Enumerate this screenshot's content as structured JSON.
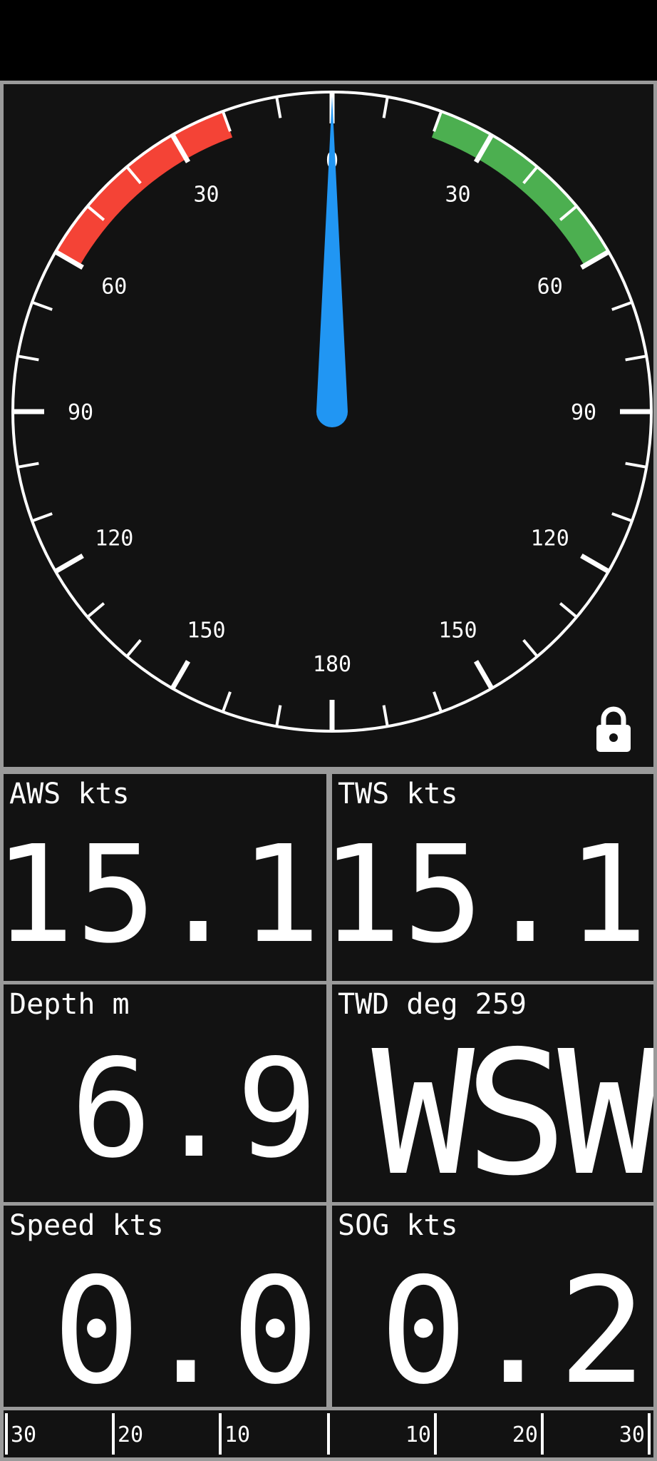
{
  "gauge": {
    "ticks_top": "0",
    "labels_left": [
      "30",
      "60",
      "90",
      "120",
      "150"
    ],
    "labels_right": [
      "30",
      "60",
      "90",
      "120",
      "150"
    ],
    "label_bottom": "180",
    "pointer_angle_deg": 0,
    "port_color": "#f44336",
    "starboard_color": "#4caf50",
    "pointer_color": "#2196f3"
  },
  "panels": {
    "aws": {
      "label": "AWS kts",
      "value": "15.1"
    },
    "tws": {
      "label": "TWS kts",
      "value": "15.1"
    },
    "depth": {
      "label": "Depth m",
      "value": "6.9"
    },
    "twd": {
      "label": "TWD deg 259",
      "value": "WSW"
    },
    "speed": {
      "label": "Speed kts",
      "value": "0.0"
    },
    "sog": {
      "label": "SOG kts",
      "value": "0.2"
    }
  },
  "scale": {
    "left_labels": [
      "30",
      "20",
      "10"
    ],
    "right_labels": [
      "10",
      "20",
      "30"
    ]
  },
  "icons": {
    "lock": "lock-icon"
  }
}
